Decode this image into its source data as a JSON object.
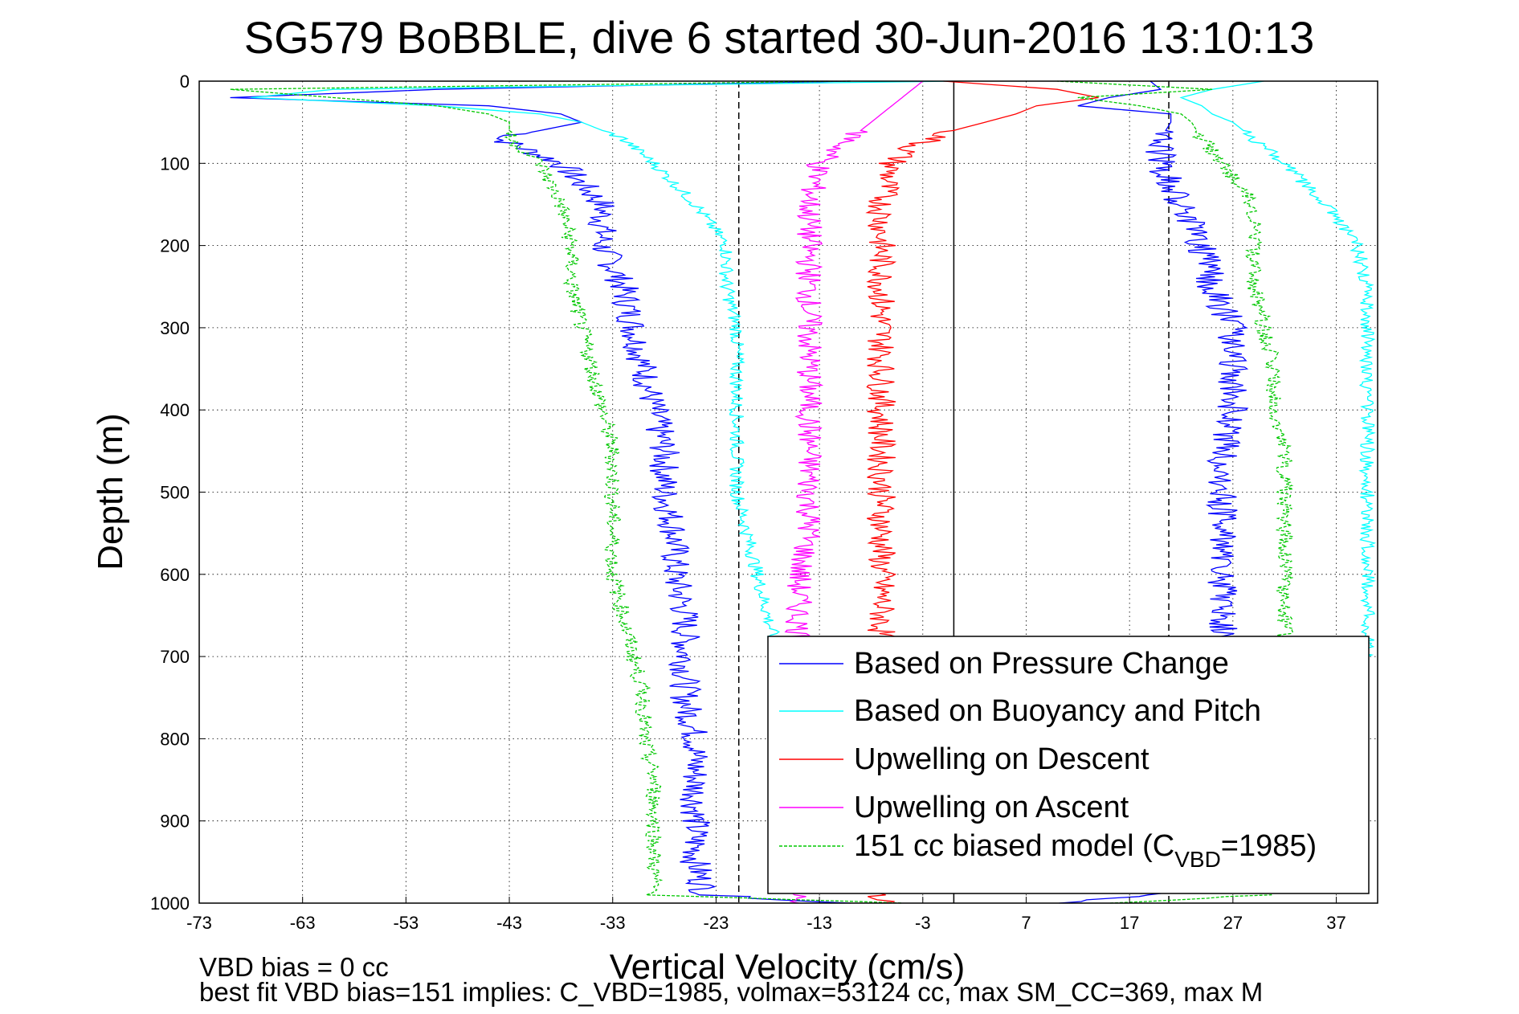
{
  "figure": {
    "title": "SG579 BoBBLE, dive 6 started 30-Jun-2016 13:10:13",
    "footer_line1": "VBD bias = 0 cc",
    "footer_line2": "best fit VBD bias=151 implies: C_VBD=1985, volmax=53124 cc, max SM_CC=369, max M"
  },
  "chart_data": {
    "type": "line",
    "title": "SG579 BoBBLE, dive 6 started 30-Jun-2016 13:10:13",
    "xlabel": "Vertical Velocity (cm/s)",
    "ylabel": "Depth (m)",
    "xlim": [
      -73,
      41
    ],
    "ylim": [
      1000,
      0
    ],
    "y_reversed": true,
    "xticks": [
      -73,
      -63,
      -53,
      -43,
      -33,
      -23,
      -13,
      -3,
      7,
      17,
      27,
      37
    ],
    "yticks": [
      0,
      100,
      200,
      300,
      400,
      500,
      600,
      700,
      800,
      900,
      1000
    ],
    "grid": true,
    "legend_position": "lower-right",
    "reference_lines": [
      {
        "x": 0,
        "style": "solid",
        "color": "#000000"
      },
      {
        "x": -20.8,
        "style": "dashed",
        "color": "#000000"
      },
      {
        "x": 20.8,
        "style": "dashed",
        "color": "#000000"
      }
    ],
    "series": [
      {
        "name": "Based on Pressure Change",
        "color": "#0000ff",
        "style": "solid",
        "descent": {
          "depth": [
            0,
            10,
            20,
            30,
            40,
            50,
            70,
            100,
            150,
            200,
            250,
            300,
            350,
            400,
            450,
            500,
            550,
            600,
            650,
            700,
            750,
            800,
            850,
            900,
            950,
            990,
            1000
          ],
          "velocity": [
            -10,
            -50,
            -70,
            -45,
            -38,
            -36,
            -44,
            -38,
            -34,
            -34,
            -32,
            -31,
            -30,
            -29,
            -28,
            -28,
            -27,
            -27,
            -26,
            -26,
            -26,
            -25,
            -25,
            -25,
            -25,
            -24,
            -10
          ]
        },
        "ascent": {
          "depth": [
            1000,
            990,
            950,
            900,
            850,
            800,
            750,
            700,
            650,
            600,
            550,
            500,
            450,
            400,
            350,
            300,
            250,
            200,
            150,
            100,
            70,
            50,
            40,
            30,
            20,
            10,
            0
          ],
          "velocity": [
            10,
            20,
            24,
            25,
            25,
            25,
            26,
            26,
            26,
            26,
            26,
            26,
            26,
            27,
            27,
            27,
            25,
            24,
            22,
            20,
            20,
            21,
            21,
            12,
            15,
            20,
            19
          ]
        }
      },
      {
        "name": "Based on Buoyancy and Pitch",
        "color": "#00ffff",
        "style": "solid",
        "descent": {
          "depth": [
            0,
            10,
            20,
            30,
            40,
            50,
            70,
            100,
            150,
            200,
            250,
            300,
            350,
            400,
            450,
            500,
            550,
            600,
            650,
            700
          ],
          "velocity": [
            0,
            -60,
            -68,
            -50,
            -40,
            -36,
            -32,
            -29,
            -25,
            -22,
            -22,
            -21,
            -21,
            -21,
            -21,
            -21,
            -20,
            -19,
            -18,
            -17
          ]
        },
        "ascent": {
          "depth": [
            700,
            650,
            600,
            550,
            500,
            450,
            400,
            350,
            300,
            250,
            200,
            150,
            100,
            70,
            50,
            40,
            30,
            20,
            10,
            0
          ],
          "velocity": [
            40,
            40,
            40,
            40,
            40,
            40,
            40,
            40,
            40,
            40,
            39,
            36,
            32,
            29,
            27,
            25,
            24,
            22,
            25,
            30
          ]
        }
      },
      {
        "name": "Upwelling on Descent",
        "color": "#ff0000",
        "style": "solid",
        "depth": [
          0,
          10,
          20,
          30,
          40,
          50,
          60,
          70,
          80,
          90,
          100,
          150,
          200,
          250,
          300,
          350,
          400,
          450,
          500,
          550,
          600,
          650,
          700,
          750,
          800,
          850,
          900,
          950,
          1000
        ],
        "velocity": [
          -1,
          10,
          14,
          8,
          6,
          3,
          0,
          -2,
          -4,
          -5,
          -6,
          -7,
          -7,
          -7,
          -7,
          -7,
          -7,
          -7,
          -7,
          -7,
          -7,
          -7,
          -7,
          -7,
          -7,
          -7,
          -7,
          -7,
          -7
        ]
      },
      {
        "name": "Upwelling on Ascent",
        "color": "#ff00ff",
        "style": "solid",
        "depth": [
          0,
          10,
          20,
          30,
          40,
          50,
          60,
          70,
          80,
          90,
          100,
          150,
          200,
          250,
          300,
          350,
          400,
          450,
          500,
          550,
          600,
          650,
          700,
          750,
          800,
          850,
          900,
          950,
          1000
        ],
        "velocity": [
          -3,
          -4,
          -5,
          -6,
          -7,
          -8,
          -9,
          -10,
          -11,
          -12,
          -13,
          -14,
          -14,
          -14,
          -14,
          -14,
          -14,
          -14,
          -14,
          -14,
          -15,
          -15,
          -15,
          -15,
          -15,
          -15,
          -15,
          -15,
          -15
        ]
      },
      {
        "name": "151 cc biased model (C",
        "name_sub": "VBD",
        "name_tail": "=1985)",
        "color": "#00c800",
        "style": "dashed",
        "descent": {
          "depth": [
            0,
            10,
            20,
            30,
            40,
            50,
            70,
            100,
            150,
            200,
            250,
            300,
            350,
            400,
            450,
            500,
            550,
            600,
            650,
            700,
            750,
            800,
            850,
            900,
            950,
            990,
            1000
          ],
          "velocity": [
            -10,
            -70,
            -60,
            -50,
            -45,
            -43,
            -43,
            -40,
            -38,
            -37,
            -37,
            -36,
            -35,
            -34,
            -33,
            -33,
            -33,
            -33,
            -32,
            -31,
            -30,
            -30,
            -29,
            -29,
            -29,
            -29,
            -5
          ]
        },
        "ascent": {
          "depth": [
            1000,
            990,
            950,
            900,
            850,
            800,
            750,
            700,
            650,
            600,
            550,
            500,
            450,
            400,
            350,
            300,
            250,
            200,
            150,
            100,
            70,
            50,
            40,
            30,
            20,
            10,
            0
          ],
          "velocity": [
            15,
            30,
            33,
            33,
            33,
            33,
            32,
            32,
            32,
            32,
            32,
            32,
            32,
            31,
            31,
            30,
            29,
            29,
            29,
            26,
            24,
            23,
            22,
            18,
            12,
            25,
            10
          ]
        }
      }
    ]
  }
}
